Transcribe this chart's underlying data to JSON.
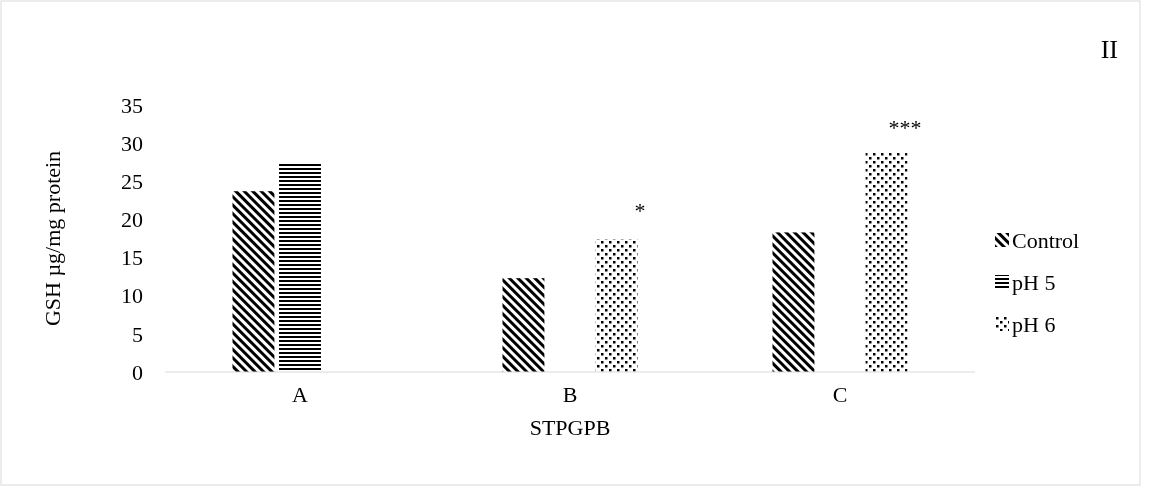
{
  "chart_data": {
    "type": "bar",
    "xlabel": "STPGPB",
    "ylabel": "GSH µg/mg protein",
    "categories": [
      "A",
      "B",
      "C"
    ],
    "series": [
      {
        "name": "Control",
        "color": "#000000",
        "values": [
          23.7,
          12.3,
          18.3
        ]
      },
      {
        "name": "pH 5",
        "color": "#000000",
        "values": [
          27.3,
          null,
          null
        ]
      },
      {
        "name": "pH  6",
        "color": "#000000",
        "values": [
          null,
          17.4,
          28.7
        ]
      }
    ],
    "ylim": [
      0,
      35
    ],
    "yticks": [
      0,
      5,
      10,
      15,
      20,
      25,
      30,
      35
    ],
    "grid": false,
    "legend": "right",
    "annotations": [
      "*",
      "***",
      "II"
    ]
  }
}
